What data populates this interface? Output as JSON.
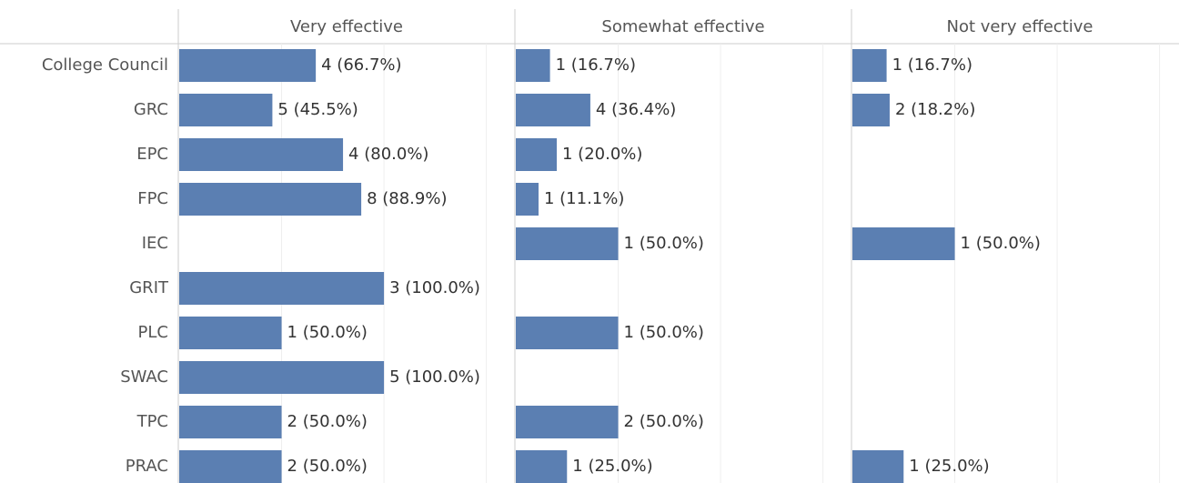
{
  "chart_data": {
    "type": "bar",
    "categories": [
      "College Council",
      "GRC",
      "EPC",
      "FPC",
      "IEC",
      "GRIT",
      "PLC",
      "SWAC",
      "TPC",
      "PRAC"
    ],
    "series": [
      {
        "name": "Very effective",
        "color": "#5b7fb2",
        "values": [
          66.7,
          45.5,
          80.0,
          88.9,
          null,
          100.0,
          50.0,
          100.0,
          50.0,
          50.0
        ],
        "value_labels": [
          "4 (66.7%)",
          "5 (45.5%)",
          "4 (80.0%)",
          "8 (88.9%)",
          null,
          "3 (100.0%)",
          "1 (50.0%)",
          "5 (100.0%)",
          "2 (50.0%)",
          "2 (50.0%)"
        ]
      },
      {
        "name": "Somewhat effective",
        "color": "#5b7fb2",
        "values": [
          16.7,
          36.4,
          20.0,
          11.1,
          50.0,
          null,
          50.0,
          null,
          50.0,
          25.0
        ],
        "value_labels": [
          "1 (16.7%)",
          "4 (36.4%)",
          "1 (20.0%)",
          "1 (11.1%)",
          "1 (50.0%)",
          null,
          "1 (50.0%)",
          null,
          "2 (50.0%)",
          "1 (25.0%)"
        ]
      },
      {
        "name": "Not very effective",
        "color": "#5b7fb2",
        "values": [
          16.7,
          18.2,
          null,
          null,
          50.0,
          null,
          null,
          null,
          null,
          25.0
        ],
        "value_labels": [
          "1 (16.7%)",
          "2 (18.2%)",
          null,
          null,
          "1 (50.0%)",
          null,
          null,
          null,
          null,
          "1 (25.0%)"
        ]
      }
    ],
    "xlim": [
      0,
      163.5
    ],
    "xticks": [
      0,
      50,
      100,
      150
    ],
    "grid": true
  }
}
